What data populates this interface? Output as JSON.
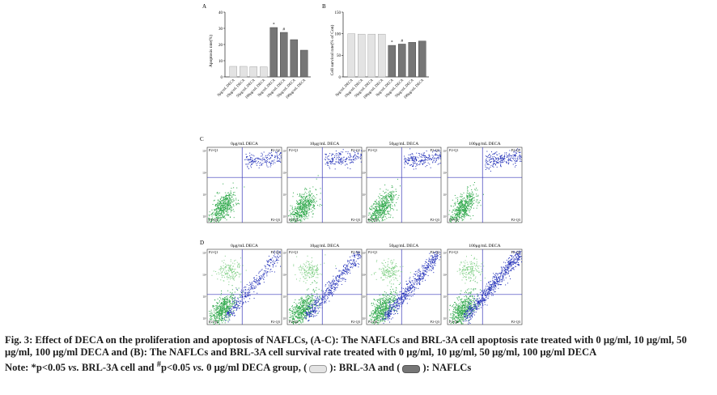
{
  "figure": {
    "panel_labels": {
      "a": "A",
      "b": "B",
      "c": "C",
      "d": "D"
    },
    "conc_labels": [
      "0μg/mL DECA",
      "10μg/mL DECA",
      "50μg/mL DECA",
      "100μg/mL DECA"
    ],
    "quadrant_labels": {
      "q1": "P2-Q1",
      "q2": "P2-Q2",
      "q3": "P2-Q3",
      "q4": "P2-Q4"
    },
    "flow_axis_ticks": [
      "10²",
      "10³",
      "10⁴",
      "10⁵"
    ],
    "sig_star": "*",
    "sig_hash": "#"
  },
  "chart_data": [
    {
      "type": "bar",
      "panel": "A",
      "ylabel": "Apoptosis rate(%)",
      "ylim": [
        0,
        40
      ],
      "yticks": [
        "0",
        "10",
        "20",
        "30",
        "40"
      ],
      "categories": [
        "0μg/mL DECA",
        "10μg/mL DECA",
        "50μg/mL DECA",
        "100μg/mL DECA",
        "0μg/mL DECA",
        "10μg/mL DECA",
        "50μg/mL DECA",
        "100μg/mL DECA"
      ],
      "values": [
        6.5,
        6.5,
        6.3,
        6.2,
        30.5,
        27.5,
        23.0,
        16.5
      ],
      "groups": [
        "BRL-3A",
        "BRL-3A",
        "BRL-3A",
        "BRL-3A",
        "NAFLCs",
        "NAFLCs",
        "NAFLCs",
        "NAFLCs"
      ],
      "annotations": [
        "",
        "",
        "",
        "",
        "*",
        "#",
        "",
        ""
      ]
    },
    {
      "type": "bar",
      "panel": "B",
      "ylabel": "Cell survival rate(% of Con)",
      "ylim": [
        0,
        150
      ],
      "yticks": [
        "0",
        "50",
        "100",
        "150"
      ],
      "categories": [
        "0μg/mL DECA",
        "10μg/mL DECA",
        "50μg/mL DECA",
        "100μg/mL DECA",
        "0μg/mL DECA",
        "10μg/mL DECA",
        "50μg/mL DECA",
        "100μg/mL DECA"
      ],
      "values": [
        100,
        99,
        99,
        99,
        73,
        76,
        80,
        83
      ],
      "groups": [
        "BRL-3A",
        "BRL-3A",
        "BRL-3A",
        "BRL-3A",
        "NAFLCs",
        "NAFLCs",
        "NAFLCs",
        "NAFLCs"
      ],
      "annotations": [
        "",
        "",
        "",
        "",
        "*",
        "#",
        "",
        ""
      ]
    }
  ],
  "caption": {
    "line1": "Fig. 3: Effect of DECA on the proliferation and apoptosis of NAFLCs, (A-C): The NAFLCs and BRL-3A cell apoptosis rate treated with 0 μg/ml, 10 μg/ml, 50 μg/ml, 100 μg/ml DECA and (B): The NAFLCs and BRL-3A cell survival rate treated with 0 μg/ml, 10 μg/ml, 50 μg/ml, 100 μg/ml DECA",
    "note_start": "Note: *p<0.05",
    "vs1": "vs.",
    "note_mid": "BRL-3A cell and",
    "hash_sup": "#",
    "note_mid2": "p<0.05",
    "vs2": "vs.",
    "note_mid3": "0 μg/ml DECA group, (",
    "note_brl": "): BRL-3A and (",
    "note_nafl": "): NAFLCs"
  },
  "colors": {
    "light_bar": "#e3e3e3",
    "dark_bar": "#767676",
    "scatter_green": "#2ea84a",
    "scatter_blue": "#2230b8",
    "gate_line": "#3a3ab8"
  }
}
